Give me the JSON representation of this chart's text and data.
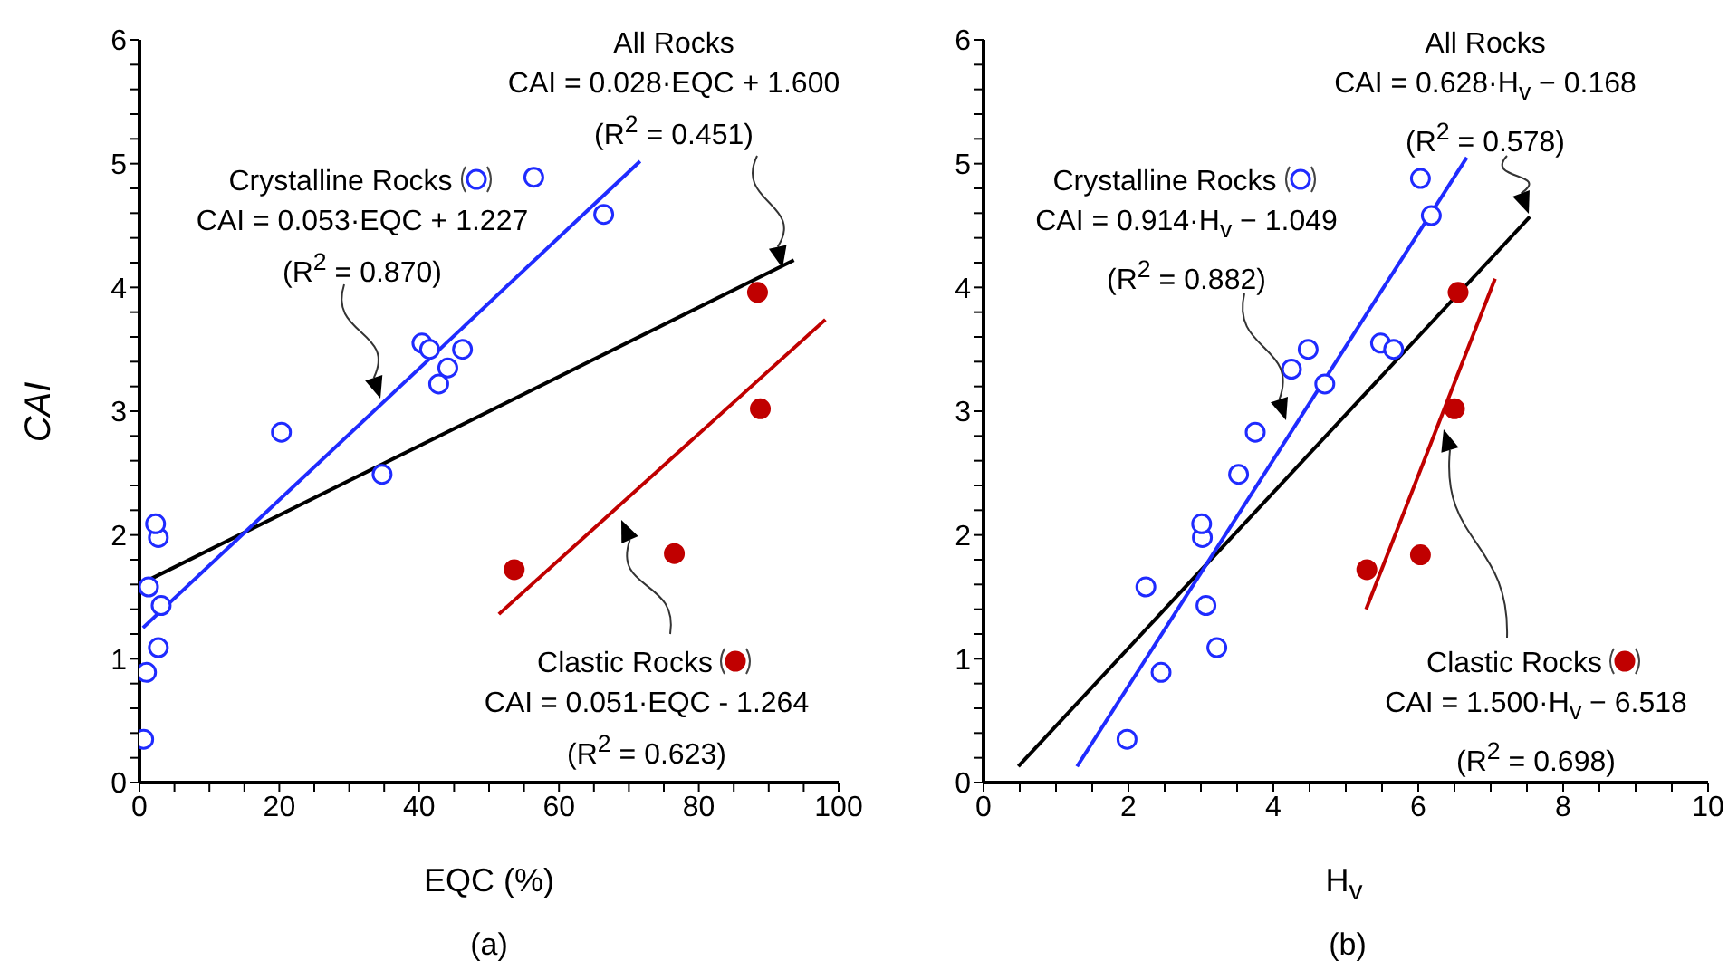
{
  "chart_data": [
    {
      "type": "scatter",
      "legend": "bottom left",
      "xlabel": "EQC (%)",
      "ylabel": "CAI",
      "xlim": [
        0,
        100
      ],
      "ylim": [
        0,
        6
      ],
      "xticks": [
        0,
        {
          "value": 5,
          "label": null
        },
        {
          "value": 10,
          "label": null
        },
        {
          "value": 15,
          "label": null
        },
        20,
        {
          "value": 25,
          "label": null
        },
        {
          "value": 30,
          "label": null
        },
        {
          "value": 35,
          "label": null
        },
        40,
        {
          "value": 45,
          "label": null
        },
        {
          "value": 50,
          "label": null
        },
        {
          "value": 55,
          "label": null
        },
        60,
        {
          "value": 65,
          "label": null
        },
        {
          "value": 70,
          "label": null
        },
        {
          "value": 75,
          "label": null
        },
        80,
        {
          "value": 85,
          "label": null
        },
        {
          "value": 90,
          "label": null
        },
        {
          "value": 95,
          "label": null
        },
        100
      ],
      "yticks": [
        0,
        {
          "value": 0.2,
          "label": null
        },
        {
          "value": 0.4,
          "label": null
        },
        {
          "value": 0.6,
          "label": null
        },
        {
          "value": 0.8,
          "label": null
        },
        1,
        {
          "value": 1.2,
          "label": null
        },
        {
          "value": 1.4,
          "label": null
        },
        {
          "value": 1.6,
          "label": null
        },
        {
          "value": 1.8,
          "label": null
        },
        2,
        {
          "value": 2.2,
          "label": null
        },
        {
          "value": 2.4,
          "label": null
        },
        {
          "value": 2.6,
          "label": null
        },
        {
          "value": 2.8,
          "label": null
        },
        3,
        {
          "value": 3.2,
          "label": null
        },
        {
          "value": 3.4,
          "label": null
        },
        {
          "value": 3.6,
          "label": null
        },
        {
          "value": 3.8,
          "label": null
        },
        4,
        {
          "value": 4.2,
          "label": null
        },
        {
          "value": 4.4,
          "label": null
        },
        {
          "value": 4.6,
          "label": null
        },
        {
          "value": 4.8,
          "label": null
        },
        5,
        {
          "value": 5.2,
          "label": null
        },
        {
          "value": 5.4,
          "label": null
        },
        {
          "value": 5.6,
          "label": null
        },
        {
          "value": 5.8,
          "label": null
        },
        6
      ],
      "series": [
        {
          "name": "Crystalline Rocks",
          "marker": "circle",
          "color": "#1f2bff",
          "x": [
            0.6,
            1.0,
            2.7,
            3.1,
            1.3,
            2.7,
            2.3,
            20.3,
            34.7,
            40.4,
            41.5,
            46.2,
            44.1,
            42.8,
            56.4,
            66.4
          ],
          "values": [
            0.35,
            0.89,
            1.09,
            1.43,
            1.58,
            1.98,
            2.09,
            2.83,
            2.49,
            3.55,
            3.5,
            3.5,
            3.35,
            3.22,
            4.89,
            4.59
          ]
        },
        {
          "name": "Clastic Rocks",
          "marker": "circle",
          "color": "#c00000",
          "x": [
            53.6,
            76.5,
            88.4,
            88.8
          ],
          "values": [
            1.72,
            1.85,
            3.96,
            3.02
          ]
        },
        {
          "type": "line",
          "marker": "none",
          "color": "#000000",
          "x": [
            0,
            93.6
          ],
          "values": [
            1.6,
            4.22
          ]
        },
        {
          "type": "line",
          "marker": "none",
          "color": "#1f2bff",
          "x": [
            0.5,
            71.6
          ],
          "values": [
            1.25,
            5.02
          ]
        },
        {
          "type": "line",
          "marker": "none",
          "color": "#c00000",
          "x": [
            51.4,
            98.1
          ],
          "values": [
            1.36,
            3.74
          ]
        }
      ],
      "annotations": [
        "CAI = 0.053·EQC + 1.227",
        "(R$^{2}$ = 0.870)",
        "All Rocks",
        "CAI = 0.028·EQC + 1.600",
        "(R$^{2}$ = 0.451)",
        "CAI = 0.051·EQC - 1.264",
        "(R$^{2}$ = 0.623)",
        "(a)"
      ]
    },
    {
      "type": "scatter",
      "legend": "bottom left",
      "xlabel": "H$_{v}$",
      "xlim": [
        0,
        10
      ],
      "ylim": [
        0,
        6
      ],
      "xticks": [
        0,
        {
          "value": 0.5,
          "label": null
        },
        {
          "value": 1,
          "label": null
        },
        {
          "value": 1.5,
          "label": null
        },
        2,
        {
          "value": 2.5,
          "label": null
        },
        {
          "value": 3,
          "label": null
        },
        {
          "value": 3.5,
          "label": null
        },
        4,
        {
          "value": 4.5,
          "label": null
        },
        {
          "value": 5,
          "label": null
        },
        {
          "value": 5.5,
          "label": null
        },
        6,
        {
          "value": 6.5,
          "label": null
        },
        {
          "value": 7,
          "label": null
        },
        {
          "value": 7.5,
          "label": null
        },
        8,
        {
          "value": 8.5,
          "label": null
        },
        {
          "value": 9,
          "label": null
        },
        {
          "value": 9.5,
          "label": null
        },
        10
      ],
      "yticks": [
        0,
        {
          "value": 0.2,
          "label": null
        },
        {
          "value": 0.4,
          "label": null
        },
        {
          "value": 0.6,
          "label": null
        },
        {
          "value": 0.8,
          "label": null
        },
        1,
        {
          "value": 1.2,
          "label": null
        },
        {
          "value": 1.4,
          "label": null
        },
        {
          "value": 1.6,
          "label": null
        },
        {
          "value": 1.8,
          "label": null
        },
        2,
        {
          "value": 2.2,
          "label": null
        },
        {
          "value": 2.4,
          "label": null
        },
        {
          "value": 2.6,
          "label": null
        },
        {
          "value": 2.8,
          "label": null
        },
        3,
        {
          "value": 3.2,
          "label": null
        },
        {
          "value": 3.4,
          "label": null
        },
        {
          "value": 3.6,
          "label": null
        },
        {
          "value": 3.8,
          "label": null
        },
        4,
        {
          "value": 4.2,
          "label": null
        },
        {
          "value": 4.4,
          "label": null
        },
        {
          "value": 4.6,
          "label": null
        },
        {
          "value": 4.8,
          "label": null
        },
        5,
        {
          "value": 5.2,
          "label": null
        },
        {
          "value": 5.4,
          "label": null
        },
        {
          "value": 5.6,
          "label": null
        },
        {
          "value": 5.8,
          "label": null
        },
        6
      ],
      "series": [
        {
          "name": "Crystalline Rocks",
          "marker": "circle",
          "color": "#1f2bff",
          "x": [
            1.98,
            2.45,
            3.22,
            3.07,
            2.24,
            3.02,
            3.01,
            3.52,
            3.75,
            4.71,
            4.25,
            4.48,
            5.48,
            5.66,
            6.03,
            6.18
          ],
          "values": [
            0.35,
            0.89,
            1.09,
            1.43,
            1.58,
            1.98,
            2.09,
            2.49,
            2.83,
            3.22,
            3.34,
            3.5,
            3.55,
            3.5,
            4.88,
            4.58
          ]
        },
        {
          "name": "Clastic Rocks",
          "marker": "circle",
          "color": "#c00000",
          "x": [
            5.29,
            6.03,
            6.5,
            6.55
          ],
          "values": [
            1.72,
            1.84,
            3.02,
            3.96
          ]
        },
        {
          "type": "line",
          "marker": "none",
          "color": "#000000",
          "x": [
            0.48,
            7.54
          ],
          "values": [
            0.13,
            4.57
          ]
        },
        {
          "type": "line",
          "marker": "none",
          "color": "#1f2bff",
          "x": [
            1.29,
            6.67
          ],
          "values": [
            0.13,
            5.05
          ]
        },
        {
          "type": "line",
          "marker": "none",
          "color": "#c00000",
          "x": [
            5.28,
            7.06
          ],
          "values": [
            1.4,
            4.07
          ]
        }
      ],
      "annotations": [
        "CAI = 0.914·H$_{v}$ − 1.049",
        "(R$^{2}$ = 0.882)",
        "All Rocks",
        "CAI = 0.628·H$_{v}$ − 0.168",
        "(R$^{2}$ = 0.578)",
        "CAI = 1.500·H$_{v}$ − 6.518",
        "(R$^{2}$ = 0.698)",
        "(b)"
      ]
    }
  ]
}
